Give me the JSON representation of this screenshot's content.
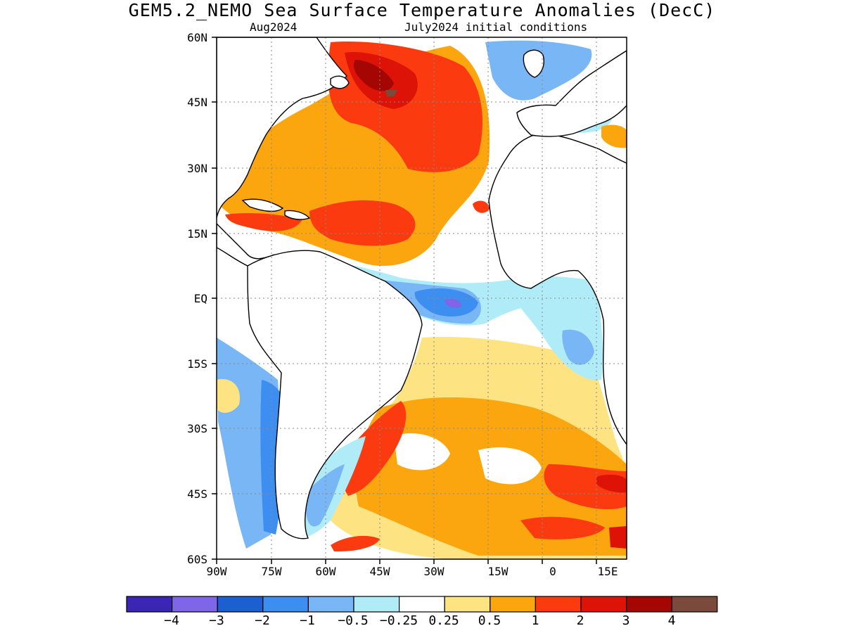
{
  "title": "GEM5.2_NEMO Sea Surface Temperature Anomalies (DecC)",
  "subtitle_left": "Aug2024",
  "subtitle_right": "July2024 initial conditions",
  "lat_labels": [
    "60N",
    "45N",
    "30N",
    "15N",
    "EQ",
    "15S",
    "30S",
    "45S",
    "60S"
  ],
  "lon_labels": [
    "90W",
    "75W",
    "60W",
    "45W",
    "30W",
    "15W",
    "0",
    "15E"
  ],
  "colorbar": {
    "colors": [
      "#3a25b4",
      "#7f66e8",
      "#1c5fd0",
      "#3c8ef0",
      "#78b6f5",
      "#b0ecf8",
      "#ffffff",
      "#fde381",
      "#fba60f",
      "#fb3a10",
      "#de1308",
      "#a30603",
      "#7a4a3d"
    ],
    "labels": [
      "-4",
      "-3",
      "-2",
      "-1",
      "-0.5",
      "-0.25",
      "0.25",
      "0.5",
      "1",
      "2",
      "3",
      "4"
    ]
  }
}
